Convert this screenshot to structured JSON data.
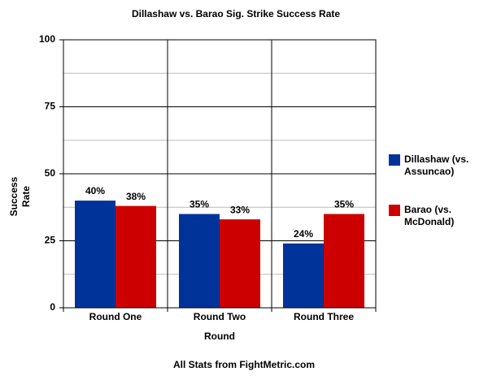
{
  "chart_data": {
    "type": "bar",
    "title": "Dillashaw vs. Barao Sig. Strike Success Rate",
    "x_label": "Round",
    "y_label": "Success Rate",
    "footer": "All Stats from FightMetric.com",
    "categories": [
      "Round One",
      "Round Two",
      "Round Three"
    ],
    "series": [
      {
        "name": "Dillashaw (vs. Assuncao)",
        "color": "#003399",
        "values": [
          40,
          35,
          24
        ],
        "value_labels": [
          "40%",
          "35%",
          "24%"
        ]
      },
      {
        "name": "Barao (vs. McDonald)",
        "color": "#cc0000",
        "values": [
          38,
          33,
          35
        ],
        "value_labels": [
          "38%",
          "33%",
          "35%"
        ]
      }
    ],
    "ylim": [
      0,
      100
    ],
    "yticks": [
      0,
      25,
      50,
      75,
      100
    ],
    "minor_yticks": [
      12.5,
      37.5,
      62.5,
      87.5
    ],
    "grid": true,
    "legend": "right"
  }
}
